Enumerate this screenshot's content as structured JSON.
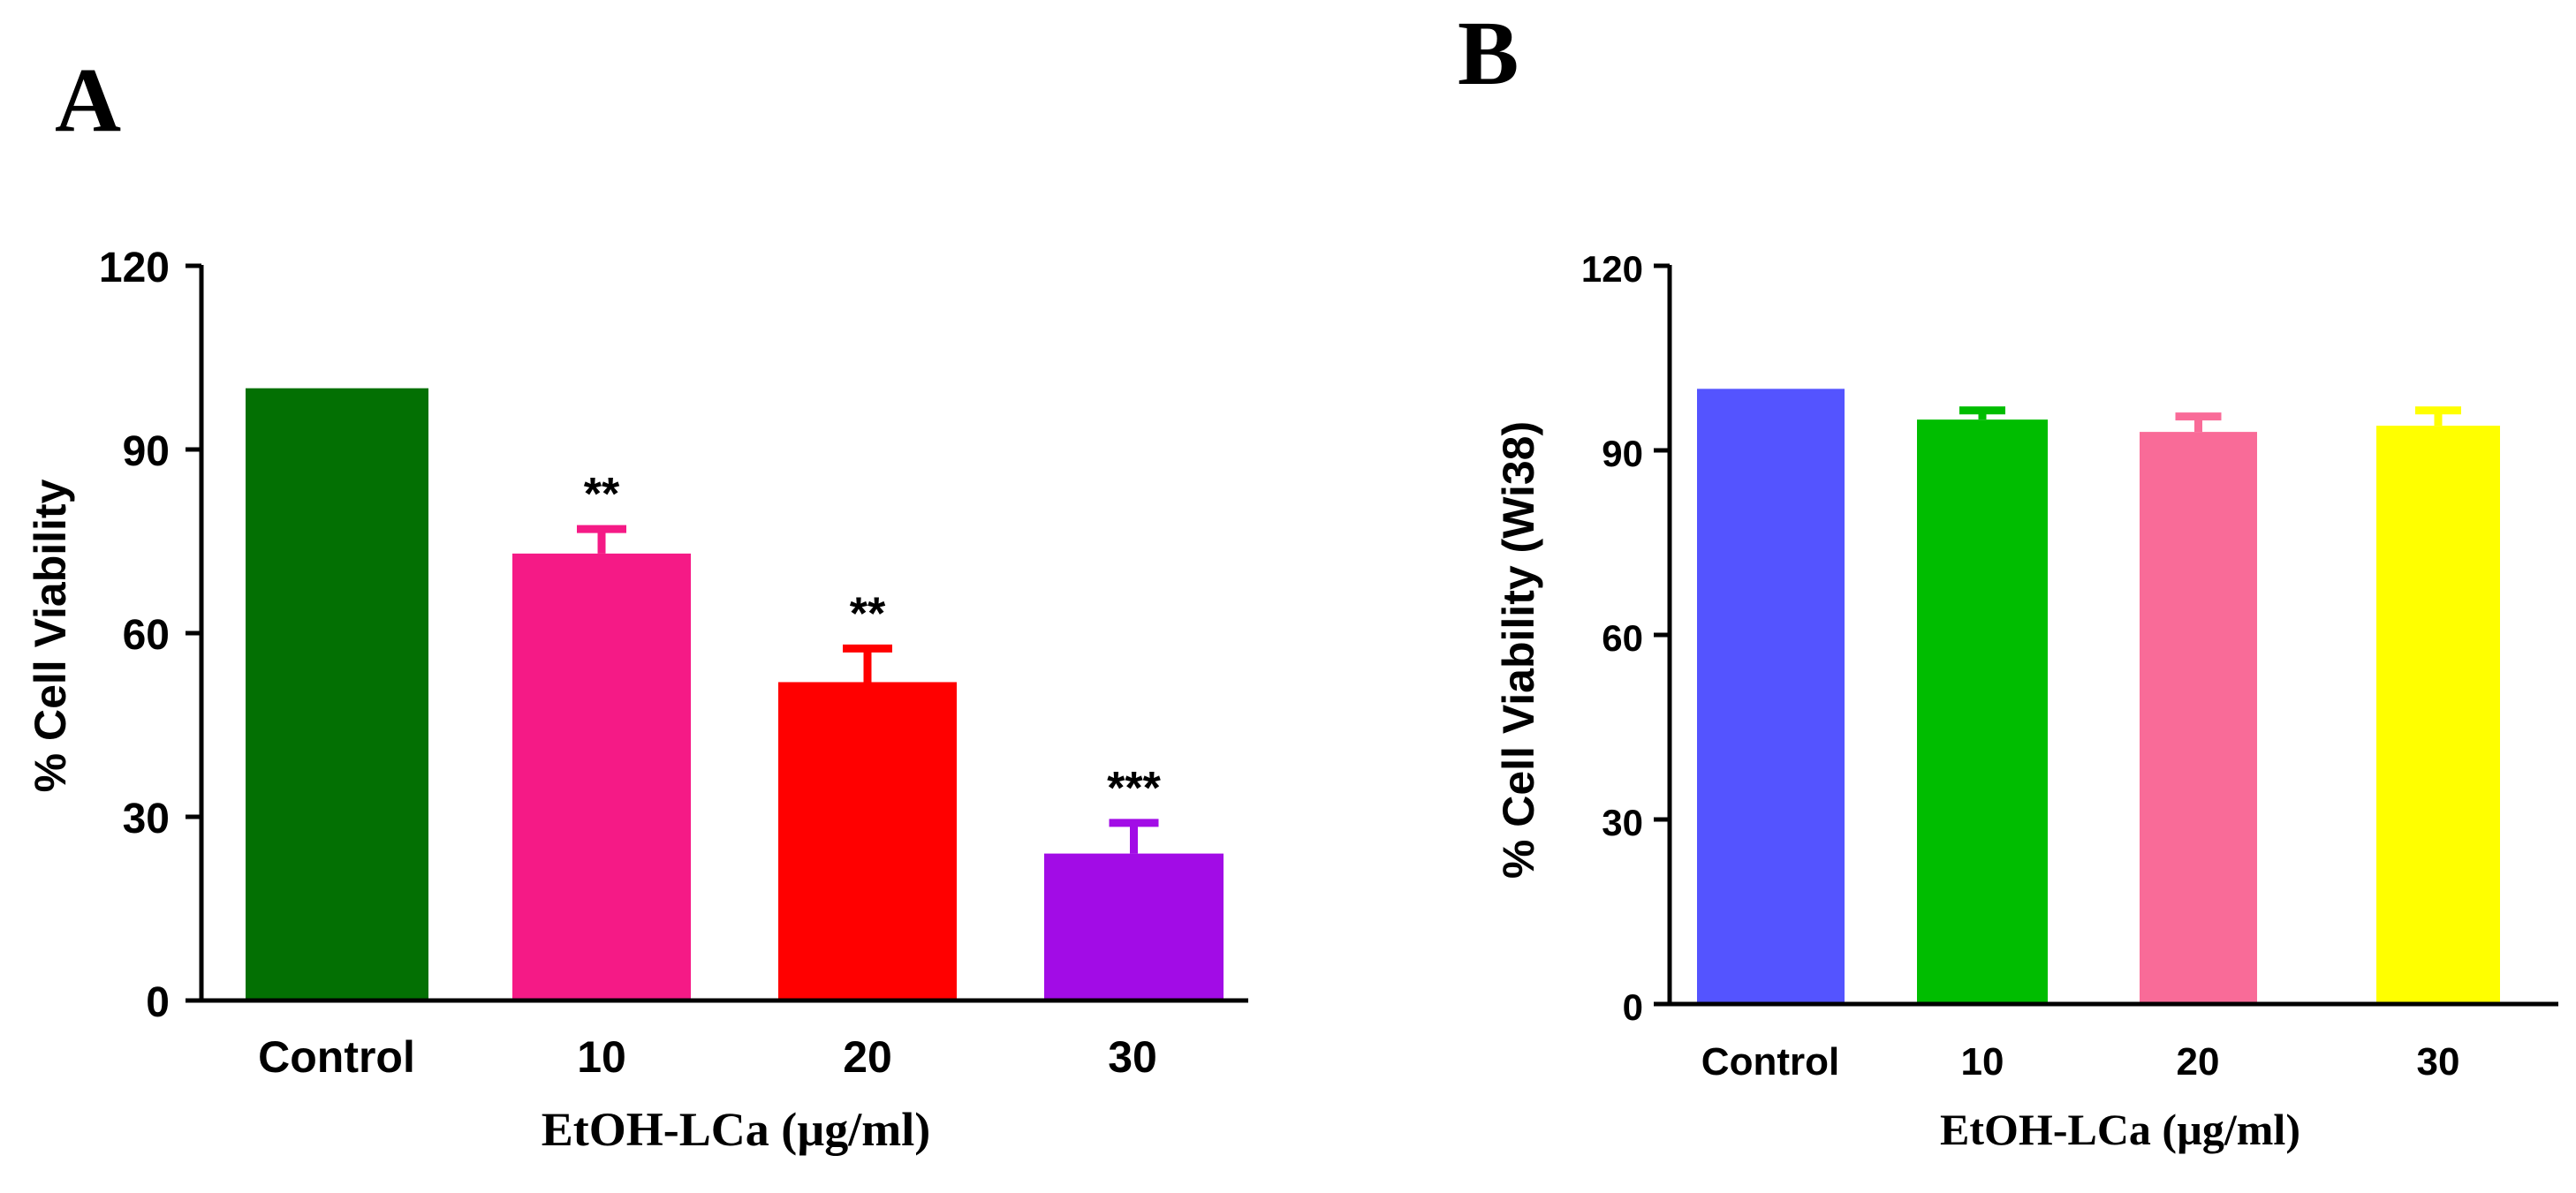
{
  "chart_data": [
    {
      "panel_label": "A",
      "type": "bar",
      "categories": [
        "Control",
        "10",
        "20",
        "30"
      ],
      "values": [
        100,
        73,
        52,
        24
      ],
      "errors": [
        0,
        4,
        5.5,
        5
      ],
      "significance": [
        "",
        "**",
        "**",
        "***"
      ],
      "colors": [
        "#037003",
        "#F51A86",
        "#FF0000",
        "#A20CE6"
      ],
      "xlabel": "EtOH-LCa (µg/ml)",
      "ylabel": "% Cell Viability",
      "ylim": [
        0,
        120
      ],
      "yticks": [
        "0",
        "30",
        "60",
        "90",
        "120"
      ]
    },
    {
      "panel_label": "B",
      "type": "bar",
      "categories": [
        "Control",
        "10",
        "20",
        "30"
      ],
      "values": [
        100,
        95,
        93,
        94
      ],
      "errors": [
        0,
        1.5,
        2.5,
        2.5
      ],
      "significance": [
        "",
        "",
        "",
        ""
      ],
      "colors": [
        "#5454FF",
        "#00BD00",
        "#F96B98",
        "#FFFF00"
      ],
      "xlabel": "EtOH-LCa (µg/ml)",
      "ylabel": "% Cell Viability (Wi38)",
      "ylim": [
        0,
        120
      ],
      "yticks": [
        "0",
        "30",
        "60",
        "90",
        "120"
      ]
    }
  ]
}
